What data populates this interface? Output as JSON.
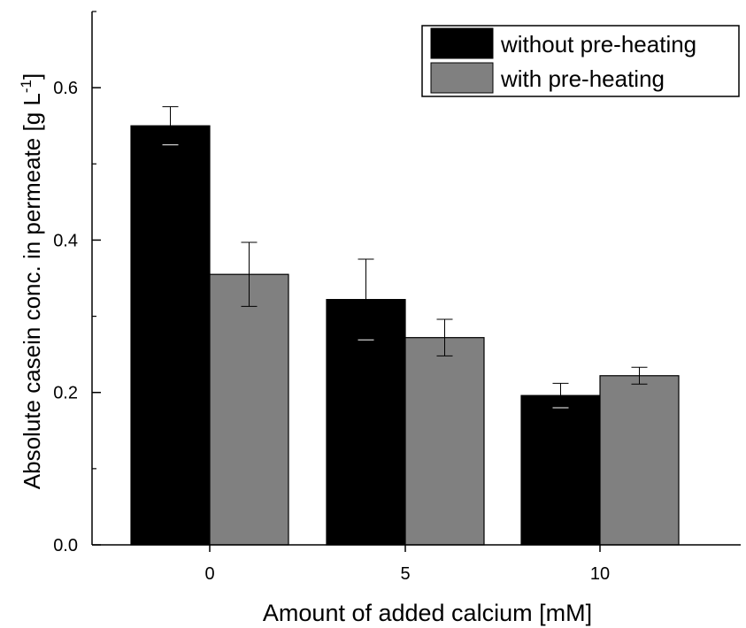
{
  "chart_data": {
    "type": "bar",
    "title": "",
    "xlabel": "Amount of added calcium [mM]",
    "ylabel": "Absolute casein conc. in permeate [g L",
    "ylabel_sup": "-1",
    "ylabel_end": "]",
    "categories": [
      "0",
      "5",
      "10"
    ],
    "ylim": [
      0,
      0.7
    ],
    "yticks": [
      "0.0",
      "0.2",
      "0.4",
      "0.6"
    ],
    "ytick_values": [
      0,
      0.2,
      0.4,
      0.6
    ],
    "grid": false,
    "legend_position": "top-right",
    "series": [
      {
        "name": "without pre-heating",
        "color": "#000000",
        "values": [
          0.55,
          0.322,
          0.196
        ],
        "errors": [
          0.025,
          0.053,
          0.016
        ]
      },
      {
        "name": "with pre-heating",
        "color": "#808080",
        "values": [
          0.355,
          0.272,
          0.222
        ],
        "errors": [
          0.042,
          0.024,
          0.011
        ]
      }
    ]
  }
}
